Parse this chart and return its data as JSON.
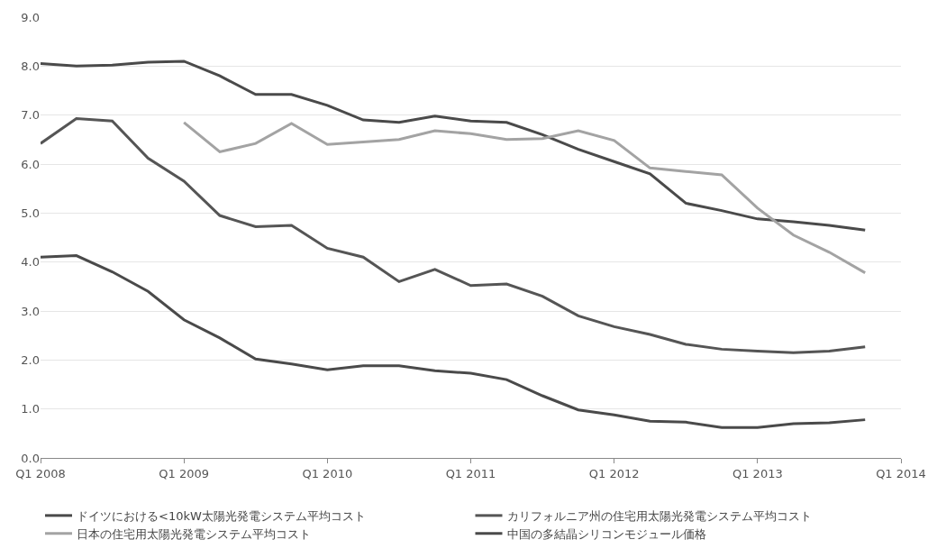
{
  "chart_data": {
    "type": "line",
    "categories": [
      "Q1 2008",
      null,
      null,
      null,
      "Q1 2009",
      null,
      null,
      null,
      "Q1 2010",
      null,
      null,
      null,
      "Q1 2011",
      null,
      null,
      null,
      "Q1 2012",
      null,
      null,
      null,
      "Q1 2013",
      null,
      null,
      null,
      "Q1 2014"
    ],
    "series": [
      {
        "name": "ドイツにおける<10kW太陽光発電システム平均コスト",
        "color": "#4a4a4a",
        "values": [
          8.05,
          8.0,
          8.02,
          8.08,
          8.1,
          7.8,
          7.42,
          7.42,
          7.2,
          6.9,
          6.85,
          6.98,
          6.88,
          6.85,
          6.6,
          6.3,
          6.05,
          5.8,
          5.2,
          5.05,
          4.88,
          4.82,
          4.75,
          4.65,
          null
        ]
      },
      {
        "name": "カリフォルニア州の住宅用太陽光発電システム平均コスト",
        "color": "#555555",
        "values": [
          6.42,
          6.93,
          6.88,
          6.12,
          5.65,
          4.95,
          4.72,
          4.75,
          4.28,
          4.1,
          3.6,
          3.85,
          3.52,
          3.55,
          3.3,
          2.9,
          2.68,
          2.52,
          2.32,
          2.22,
          2.18,
          2.15,
          2.18,
          2.27,
          null
        ]
      },
      {
        "name": "日本の住宅用太陽光発電システム平均コスト",
        "color": "#a3a3a3",
        "values": [
          null,
          null,
          null,
          null,
          6.85,
          6.25,
          6.42,
          6.83,
          6.4,
          6.45,
          6.5,
          6.68,
          6.62,
          6.5,
          6.52,
          6.68,
          6.48,
          5.92,
          5.85,
          5.78,
          5.1,
          4.55,
          4.2,
          3.78,
          null
        ]
      },
      {
        "name": "中国の多結晶シリコンモジュール価格",
        "color": "#4a4a4a",
        "values": [
          4.1,
          4.13,
          3.8,
          3.4,
          2.82,
          2.45,
          2.02,
          1.92,
          1.8,
          1.88,
          1.88,
          1.78,
          1.73,
          1.6,
          1.27,
          0.98,
          0.88,
          0.75,
          0.73,
          0.62,
          0.62,
          0.7,
          0.72,
          0.78,
          null
        ]
      }
    ],
    "ylim": [
      0,
      9
    ],
    "yticks": [
      {
        "value": 0,
        "label": "0.0"
      },
      {
        "value": 1,
        "label": "1.0"
      },
      {
        "value": 2,
        "label": "2.0"
      },
      {
        "value": 3,
        "label": "3.0"
      },
      {
        "value": 4,
        "label": "4.0"
      },
      {
        "value": 5,
        "label": "5.0"
      },
      {
        "value": 6,
        "label": "6.0"
      },
      {
        "value": 7,
        "label": "7.0"
      },
      {
        "value": 8,
        "label": "8.0"
      },
      {
        "value": 9,
        "label": "9.0"
      }
    ],
    "grid": "y",
    "legend": "bottom",
    "marker": "none",
    "line_style": "solid"
  }
}
